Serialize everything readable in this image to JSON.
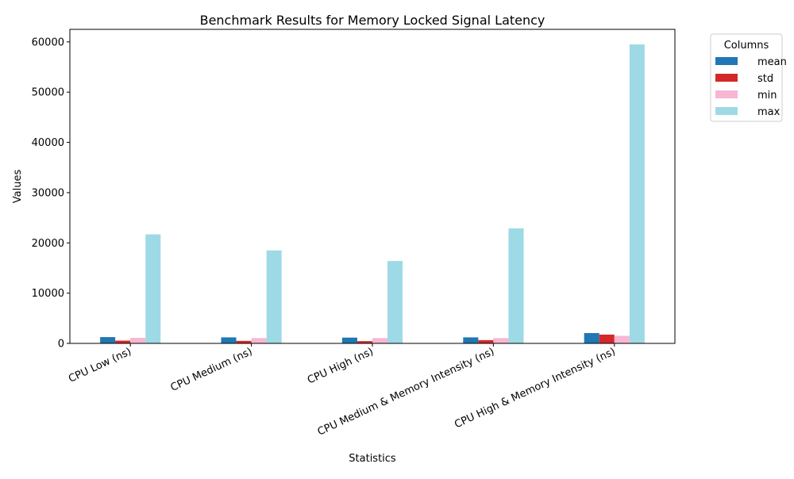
{
  "chart_data": {
    "type": "bar",
    "title": "Benchmark Results for Memory Locked Signal Latency",
    "xlabel": "Statistics",
    "ylabel": "Values",
    "categories": [
      "CPU Low (ns)",
      "CPU Medium (ns)",
      "CPU High (ns)",
      "CPU Medium & Memory Intensity (ns)",
      "CPU High & Memory Intensity (ns)"
    ],
    "series": [
      {
        "name": "mean",
        "color": "#1f77b4",
        "values": [
          1250,
          1200,
          1150,
          1200,
          2050
        ]
      },
      {
        "name": "std",
        "color": "#d62728",
        "values": [
          550,
          500,
          450,
          650,
          1750
        ]
      },
      {
        "name": "min",
        "color": "#f7b6d2",
        "values": [
          1100,
          1050,
          1050,
          1050,
          1500
        ]
      },
      {
        "name": "max",
        "color": "#9edae5",
        "values": [
          21700,
          18500,
          16400,
          22900,
          59500
        ]
      }
    ],
    "ylim": [
      0,
      62500
    ],
    "yticks": [
      0,
      10000,
      20000,
      30000,
      40000,
      50000,
      60000
    ],
    "grid": false,
    "legend": {
      "title": "Columns",
      "placement": "outside-top-right"
    }
  }
}
